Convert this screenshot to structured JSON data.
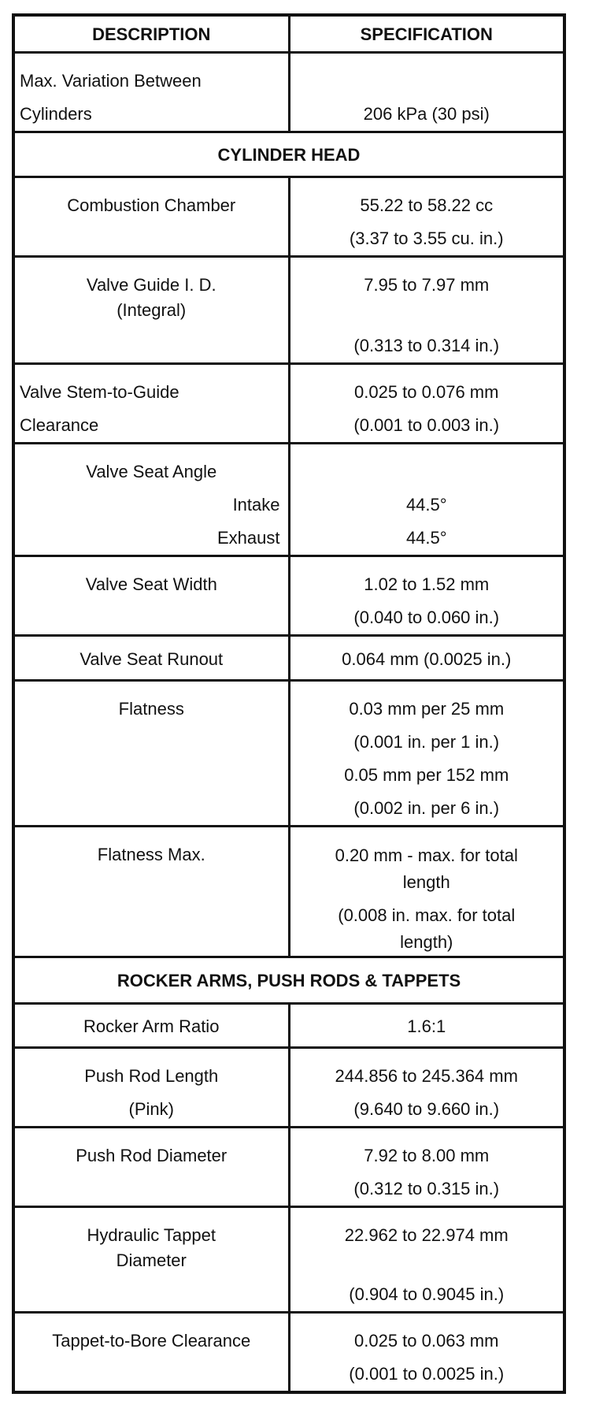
{
  "header": {
    "description": "DESCRIPTION",
    "specification": "SPECIFICATION"
  },
  "rows": {
    "max_variation": {
      "desc": [
        "Max. Variation Between",
        "Cylinders"
      ],
      "spec": "206 kPa (30 psi)"
    },
    "section_cylinder_head": "CYLINDER HEAD",
    "combustion": {
      "desc": "Combustion Chamber",
      "spec": [
        "55.22 to 58.22 cc",
        "(3.37 to 3.55 cu. in.)"
      ]
    },
    "valve_guide": {
      "desc": [
        "Valve Guide I. D.",
        "(Integral)"
      ],
      "spec": [
        "7.95 to 7.97 mm",
        "(0.313 to 0.314 in.)"
      ]
    },
    "stem_guide": {
      "desc": [
        "Valve Stem-to-Guide",
        "Clearance"
      ],
      "spec": [
        "0.025 to 0.076 mm",
        "(0.001 to 0.003 in.)"
      ]
    },
    "seat_angle": {
      "desc": "Valve Seat Angle",
      "intake_label": "Intake",
      "exhaust_label": "Exhaust",
      "intake": "44.5°",
      "exhaust": "44.5°"
    },
    "seat_width": {
      "desc": "Valve Seat Width",
      "spec": [
        "1.02 to 1.52 mm",
        "(0.040 to 0.060 in.)"
      ]
    },
    "seat_runout": {
      "desc": "Valve Seat Runout",
      "spec": "0.064 mm (0.0025 in.)"
    },
    "flatness": {
      "desc": "Flatness",
      "spec": [
        "0.03 mm per 25 mm",
        "(0.001 in. per 1 in.)",
        "0.05 mm per 152 mm",
        "(0.002 in. per 6 in.)"
      ]
    },
    "flatness_max": {
      "desc": "Flatness Max.",
      "spec": [
        "0.20 mm - max. for total length",
        "(0.008 in. max. for total length)"
      ]
    },
    "section_rocker": "ROCKER ARMS, PUSH RODS & TAPPETS",
    "rocker_ratio": {
      "desc": "Rocker Arm Ratio",
      "spec": "1.6:1"
    },
    "push_rod_length": {
      "desc": [
        "Push Rod Length",
        "(Pink)"
      ],
      "spec": [
        "244.856 to 245.364 mm",
        "(9.640 to 9.660 in.)"
      ]
    },
    "push_rod_diameter": {
      "desc": "Push Rod Diameter",
      "spec": [
        "7.92 to 8.00 mm",
        "(0.312 to 0.315 in.)"
      ]
    },
    "tappet_diameter": {
      "desc": [
        "Hydraulic Tappet",
        "Diameter"
      ],
      "spec": [
        "22.962 to 22.974 mm",
        "(0.904 to 0.9045 in.)"
      ]
    },
    "tappet_clearance": {
      "desc": "Tappet-to-Bore Clearance",
      "spec": [
        "0.025 to 0.063 mm",
        "(0.001 to 0.0025 in.)"
      ]
    }
  }
}
